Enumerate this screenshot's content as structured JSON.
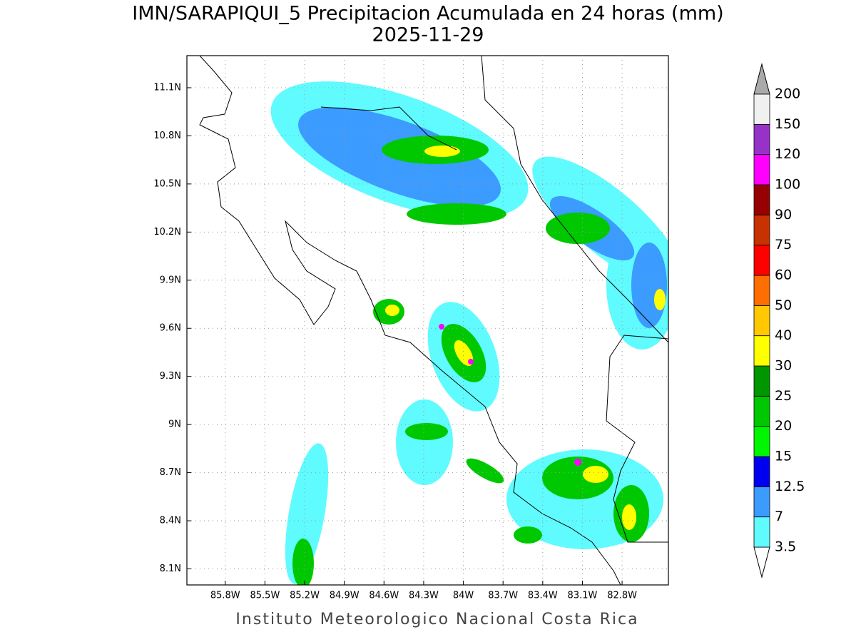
{
  "title": "IMN/SARAPIQUI_5 Precipitacion Acumulada en 24 horas (mm)",
  "subtitle": "2025-11-29",
  "footer": "Instituto Meteorologico Nacional Costa Rica",
  "map": {
    "xlim": [
      -86.09,
      -82.45
    ],
    "ylim": [
      8.0,
      11.3
    ],
    "xticks": [
      {
        "value": -85.8,
        "label": "85.8W"
      },
      {
        "value": -85.5,
        "label": "85.5W"
      },
      {
        "value": -85.2,
        "label": "85.2W"
      },
      {
        "value": -84.9,
        "label": "84.9W"
      },
      {
        "value": -84.6,
        "label": "84.6W"
      },
      {
        "value": -84.3,
        "label": "84.3W"
      },
      {
        "value": -84.0,
        "label": "84W"
      },
      {
        "value": -83.7,
        "label": "83.7W"
      },
      {
        "value": -83.4,
        "label": "83.4W"
      },
      {
        "value": -83.1,
        "label": "83.1W"
      },
      {
        "value": -82.8,
        "label": "82.8W"
      }
    ],
    "yticks": [
      {
        "value": 11.1,
        "label": "11.1N"
      },
      {
        "value": 10.8,
        "label": "10.8N"
      },
      {
        "value": 10.5,
        "label": "10.5N"
      },
      {
        "value": 10.2,
        "label": "10.2N"
      },
      {
        "value": 9.9,
        "label": "9.9N"
      },
      {
        "value": 9.6,
        "label": "9.6N"
      },
      {
        "value": 9.3,
        "label": "9.3N"
      },
      {
        "value": 9.0,
        "label": "9N"
      },
      {
        "value": 8.7,
        "label": "8.7N"
      },
      {
        "value": 8.4,
        "label": "8.4N"
      },
      {
        "value": 8.1,
        "label": "8.1N"
      }
    ],
    "grid": true
  },
  "colorbar": {
    "levels": [
      3.5,
      7,
      12.5,
      15,
      20,
      25,
      30,
      40,
      50,
      60,
      75,
      90,
      100,
      120,
      150,
      200
    ],
    "colors": [
      "#5ffbff",
      "#3c9bff",
      "#0000f0",
      "#00f500",
      "#00c800",
      "#009600",
      "#ffff00",
      "#ffc800",
      "#ff6e00",
      "#ff0000",
      "#c83200",
      "#960000",
      "#ff00ff",
      "#9632c8",
      "#f0f0f0"
    ],
    "under_color": "#ffffff",
    "over_color": "#aaaaaa"
  }
}
